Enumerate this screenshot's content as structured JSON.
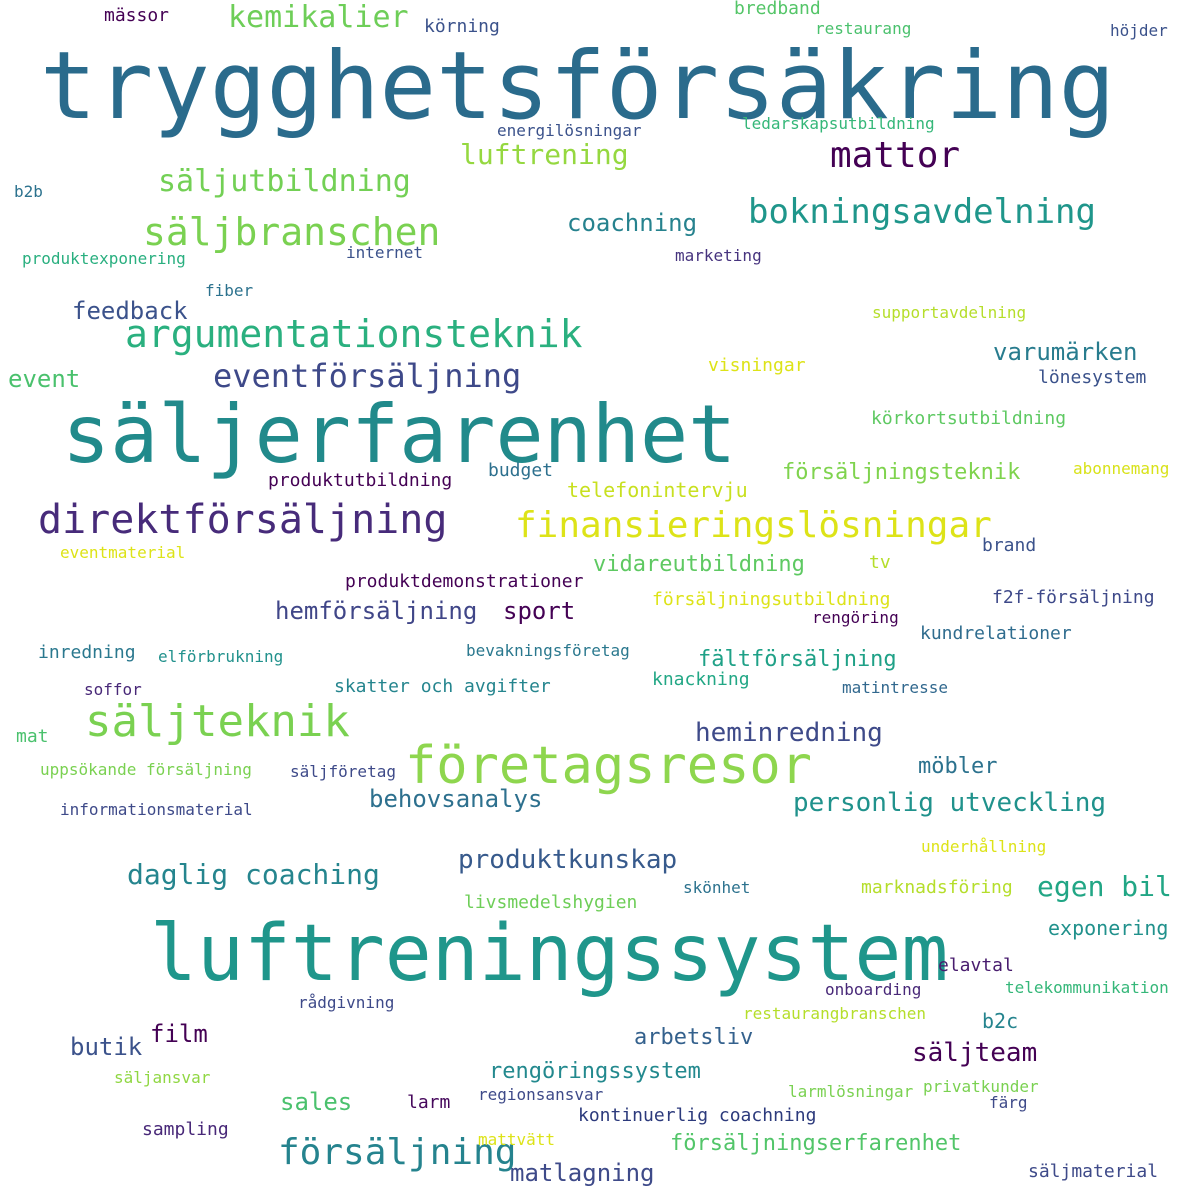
{
  "word_cloud": {
    "colors": {
      "background": "#ffffff",
      "palette": [
        "#2d6e8e",
        "#1f9e89",
        "#31688e",
        "#46327e",
        "#440154",
        "#3b528b",
        "#21918c",
        "#35b779",
        "#6ece58",
        "#90d743",
        "#b5de2b",
        "#dde318",
        "#fde725"
      ]
    },
    "words": [
      {
        "text": "trygghetsförsäkring",
        "color": "#2a6b8c"
      },
      {
        "text": "säljerfarenhet",
        "color": "#218a8b"
      },
      {
        "text": "luftreningssystem",
        "color": "#1f968b"
      },
      {
        "text": "företagsresor",
        "color": "#8ed64e"
      },
      {
        "text": "direktförsäljning",
        "color": "#472b7a"
      },
      {
        "text": "finansieringslösningar",
        "color": "#dde318"
      },
      {
        "text": "säljteknik",
        "color": "#7ad151"
      },
      {
        "text": "argumentationsteknik",
        "color": "#2ab07f"
      },
      {
        "text": "säljbranschen",
        "color": "#7ad151"
      },
      {
        "text": "bokningsavdelning",
        "color": "#1f968b"
      },
      {
        "text": "mattor",
        "color": "#440154"
      },
      {
        "text": "eventförsäljning",
        "color": "#3e4989"
      },
      {
        "text": "försäljning",
        "color": "#25838e"
      },
      {
        "text": "säljutbildning",
        "color": "#73d055"
      },
      {
        "text": "kemikalier",
        "color": "#6ece58"
      },
      {
        "text": "luftrening",
        "color": "#95d840"
      },
      {
        "text": "coachning",
        "color": "#26828e"
      },
      {
        "text": "feedback",
        "color": "#3b528b"
      },
      {
        "text": "varumärken",
        "color": "#287c8e"
      },
      {
        "text": "event",
        "color": "#4ac16d"
      },
      {
        "text": "daglig coaching",
        "color": "#25858e"
      },
      {
        "text": "produktkunskap",
        "color": "#375a8c"
      },
      {
        "text": "egen bil",
        "color": "#21a685"
      },
      {
        "text": "personlig utveckling",
        "color": "#20928c"
      },
      {
        "text": "behovsanalys",
        "color": "#2d708e"
      },
      {
        "text": "heminredning",
        "color": "#3e4a89"
      },
      {
        "text": "möbler",
        "color": "#2c728e"
      },
      {
        "text": "säljteam",
        "color": "#440154"
      },
      {
        "text": "rengöringssystem",
        "color": "#23898e"
      },
      {
        "text": "arbetsliv",
        "color": "#34618d"
      },
      {
        "text": "försäljningserfarenhet",
        "color": "#52c569"
      },
      {
        "text": "matlagning",
        "color": "#3e4a89"
      },
      {
        "text": "kontinuerlig coachning",
        "color": "#2c3a7c"
      },
      {
        "text": "sales",
        "color": "#4ac16d"
      },
      {
        "text": "larm",
        "color": "#46085c"
      },
      {
        "text": "film",
        "color": "#440154"
      },
      {
        "text": "butik",
        "color": "#3b528b"
      },
      {
        "text": "b2c",
        "color": "#25848e"
      },
      {
        "text": "elavtal",
        "color": "#481c6e"
      },
      {
        "text": "exponering",
        "color": "#21918c"
      },
      {
        "text": "hemförsäljning",
        "color": "#404688"
      },
      {
        "text": "sport",
        "color": "#440154"
      },
      {
        "text": "vidareutbildning",
        "color": "#5ec962"
      },
      {
        "text": "telefonintervju",
        "color": "#c8e020"
      },
      {
        "text": "försäljningsteknik",
        "color": "#7fd34e"
      },
      {
        "text": "fältförsäljning",
        "color": "#1fa187"
      },
      {
        "text": "produktdemonstrationer",
        "color": "#440154"
      },
      {
        "text": "produktutbildning",
        "color": "#440154"
      },
      {
        "text": "budget",
        "color": "#2d708e"
      },
      {
        "text": "skatter och avgifter",
        "color": "#25858e"
      },
      {
        "text": "knackning",
        "color": "#22a785"
      },
      {
        "text": "kundrelationer",
        "color": "#2f6c8e"
      },
      {
        "text": "f2f-försäljning",
        "color": "#3e4989"
      },
      {
        "text": "marknadsföring",
        "color": "#b5de2b"
      },
      {
        "text": "livsmedelshygien",
        "color": "#6ece58"
      },
      {
        "text": "inredning",
        "color": "#2a788e"
      },
      {
        "text": "körkortsutbildning",
        "color": "#5ec962"
      },
      {
        "text": "lönesystem",
        "color": "#3b528b"
      },
      {
        "text": "visningar",
        "color": "#dde318"
      },
      {
        "text": "supportavdelning",
        "color": "#b5de2b"
      },
      {
        "text": "abonnemang",
        "color": "#d8e219"
      },
      {
        "text": "brand",
        "color": "#3b528b"
      },
      {
        "text": "tv",
        "color": "#b5de2b"
      },
      {
        "text": "försäljningsutbildning",
        "color": "#dde318"
      },
      {
        "text": "rengöring",
        "color": "#440154"
      },
      {
        "text": "matintresse",
        "color": "#31688e"
      },
      {
        "text": "mässor",
        "color": "#440154"
      },
      {
        "text": "körning",
        "color": "#3b528b"
      },
      {
        "text": "bredband",
        "color": "#54c568"
      },
      {
        "text": "restaurang",
        "color": "#4ac16d"
      },
      {
        "text": "höjder",
        "color": "#3b528b"
      },
      {
        "text": "energilösningar",
        "color": "#3b528b"
      },
      {
        "text": "ledarskapsutbildning",
        "color": "#35b779"
      },
      {
        "text": "b2b",
        "color": "#2c728e"
      },
      {
        "text": "produktexponering",
        "color": "#29af7f"
      },
      {
        "text": "internet",
        "color": "#3b528b"
      },
      {
        "text": "marketing",
        "color": "#46337e"
      },
      {
        "text": "fiber",
        "color": "#2c728e"
      },
      {
        "text": "eventmaterial",
        "color": "#dde318"
      },
      {
        "text": "elförbrukning",
        "color": "#21918c"
      },
      {
        "text": "bevakningsföretag",
        "color": "#2a788e"
      },
      {
        "text": "soffor",
        "color": "#482878"
      },
      {
        "text": "mat",
        "color": "#4ac16d"
      },
      {
        "text": "uppsökande försäljning",
        "color": "#7ad151"
      },
      {
        "text": "säljföretag",
        "color": "#3e4a89"
      },
      {
        "text": "informationsmaterial",
        "color": "#3e4a89"
      },
      {
        "text": "skönhet",
        "color": "#2c728e"
      },
      {
        "text": "underhållning",
        "color": "#dde318"
      },
      {
        "text": "onboarding",
        "color": "#482878"
      },
      {
        "text": "telekommunikation",
        "color": "#35b779"
      },
      {
        "text": "rådgivning",
        "color": "#3e4a89"
      },
      {
        "text": "restaurangbranschen",
        "color": "#b5de2b"
      },
      {
        "text": "säljansvar",
        "color": "#90d743"
      },
      {
        "text": "larmlösningar",
        "color": "#7ad151"
      },
      {
        "text": "privatkunder",
        "color": "#7ad151"
      },
      {
        "text": "regionsansvar",
        "color": "#3e4a89"
      },
      {
        "text": "färg",
        "color": "#3e4a89"
      },
      {
        "text": "sampling",
        "color": "#482878"
      },
      {
        "text": "mattvätt",
        "color": "#dde318"
      },
      {
        "text": "säljmaterial",
        "color": "#3e4a89"
      }
    ]
  }
}
